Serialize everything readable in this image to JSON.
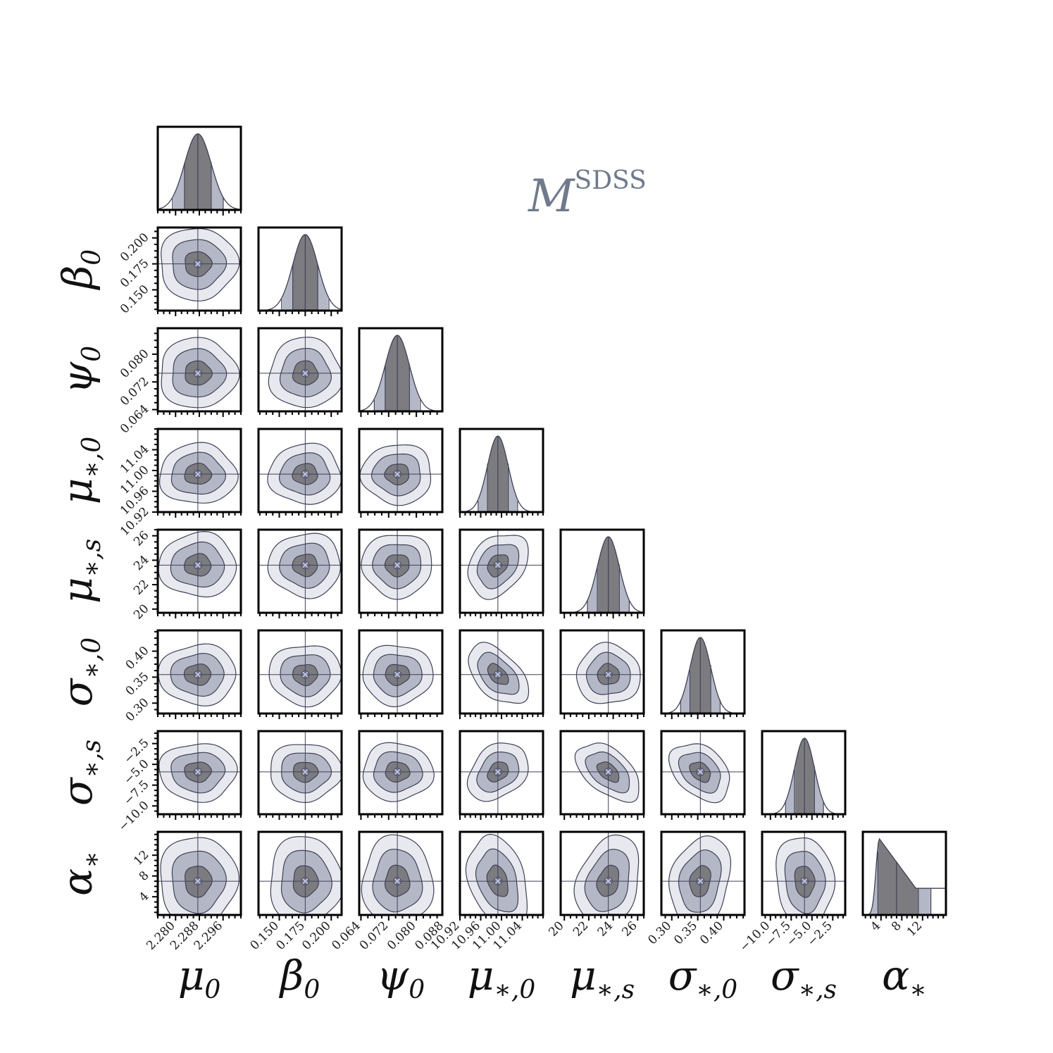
{
  "colors": {
    "outer": "#e8e9ef",
    "band1": "#b4b7c6",
    "band2": "#7c7c80",
    "line": "#3f4156",
    "frame": "#000000",
    "marker": "#6b6f8a",
    "title": "#707a8c"
  },
  "chart_data": {
    "type": "corner",
    "title": {
      "main": "M",
      "sup": "SDSS"
    },
    "parameters": [
      {
        "label": "μ",
        "sub": "0",
        "range": [
          2.274,
          2.302
        ],
        "truth": 2.2875,
        "sigma": 0.0045,
        "ticks": [
          "2.280",
          "2.288",
          "2.296"
        ],
        "tick_values": [
          2.28,
          2.288,
          2.296
        ]
      },
      {
        "label": "β",
        "sub": "0",
        "range": [
          0.13,
          0.21
        ],
        "truth": 0.175,
        "sigma": 0.012,
        "ticks": [
          "0.150",
          "0.175",
          "0.200"
        ],
        "tick_values": [
          0.15,
          0.175,
          0.2
        ]
      },
      {
        "label": "ψ",
        "sub": "0",
        "range": [
          0.0635,
          0.0875
        ],
        "truth": 0.0745,
        "sigma": 0.0035,
        "ticks": [
          "0.064",
          "0.072",
          "0.080",
          "0.088"
        ],
        "tick_values": [
          0.064,
          0.072,
          0.08,
          0.088
        ]
      },
      {
        "label": "μ",
        "sub": "∗,0",
        "range": [
          10.92,
          11.08
        ],
        "truth": 10.993,
        "sigma": 0.02,
        "ticks": [
          "10.92",
          "10.96",
          "11.00",
          "11.04"
        ],
        "tick_values": [
          10.92,
          10.96,
          11.0,
          11.04
        ]
      },
      {
        "label": "μ",
        "sub": "∗,s",
        "range": [
          19.7,
          26.5
        ],
        "truth": 23.6,
        "sigma": 0.9,
        "ticks": [
          "20",
          "22",
          "24",
          "26"
        ],
        "tick_values": [
          20,
          22,
          24,
          26
        ]
      },
      {
        "label": "σ",
        "sub": "∗,0",
        "range": [
          0.28,
          0.44
        ],
        "truth": 0.355,
        "sigma": 0.02,
        "ticks": [
          "0.30",
          "0.35",
          "0.40"
        ],
        "tick_values": [
          0.3,
          0.35,
          0.4
        ]
      },
      {
        "label": "σ",
        "sub": "∗,s",
        "range": [
          -11.0,
          -1.0
        ],
        "truth": -5.9,
        "sigma": 1.2,
        "ticks": [
          "−10.0",
          "−7.5",
          "−5.0",
          "−2.5"
        ],
        "tick_values": [
          -10.0,
          -7.5,
          -5.0,
          -2.5
        ]
      },
      {
        "label": "α",
        "sub": "∗",
        "range": [
          0.5,
          16.5
        ],
        "truth": 7.0,
        "sigma": 3.0,
        "ticks": [
          "4",
          "8",
          "12"
        ],
        "tick_values": [
          4,
          8,
          12
        ]
      }
    ],
    "pair_correlations": [
      {
        "i": 4,
        "j": 3,
        "rho": 0.3
      },
      {
        "i": 5,
        "j": 3,
        "rho": -0.5
      },
      {
        "i": 6,
        "j": 3,
        "rho": 0.3
      },
      {
        "i": 6,
        "j": 4,
        "rho": -0.5
      },
      {
        "i": 6,
        "j": 5,
        "rho": -0.35
      },
      {
        "i": 7,
        "j": 3,
        "rho": -0.3
      },
      {
        "i": 7,
        "j": 4,
        "rho": 0.25
      },
      {
        "i": 7,
        "j": 5,
        "rho": 0.2
      },
      {
        "i": 7,
        "j": 6,
        "rho": -0.1
      }
    ]
  }
}
